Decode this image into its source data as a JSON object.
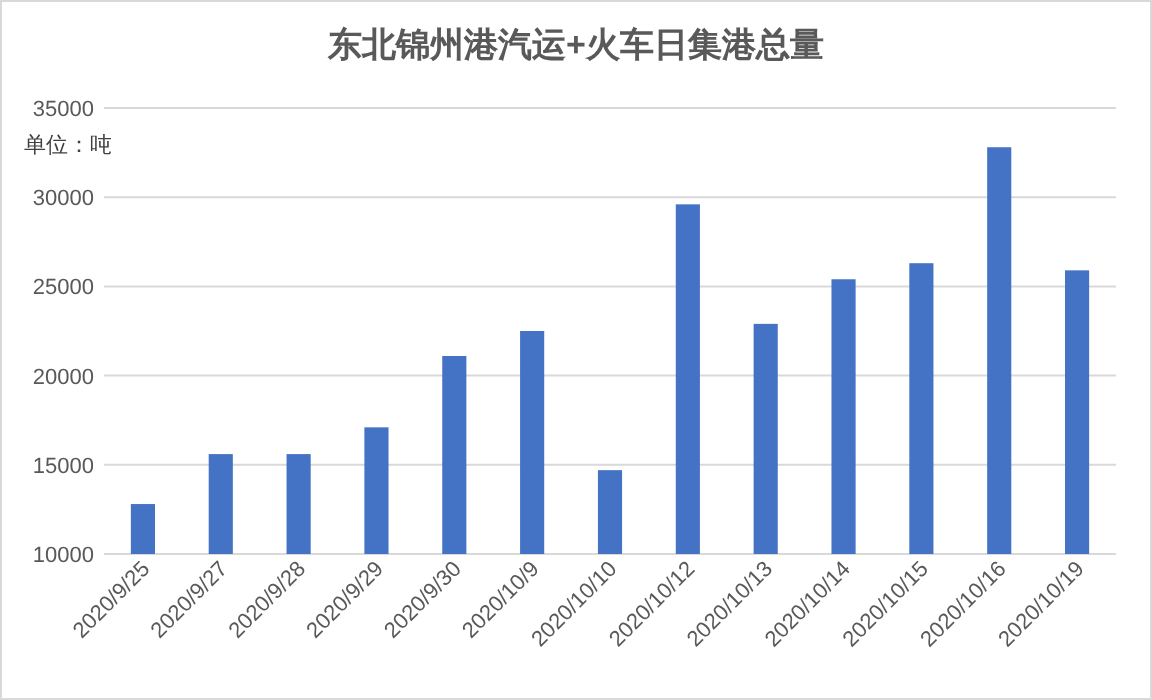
{
  "chart_data": {
    "type": "bar",
    "title": "东北锦州港汽运+火车日集港总量",
    "categories": [
      "2020/9/25",
      "2020/9/27",
      "2020/9/28",
      "2020/9/29",
      "2020/9/30",
      "2020/10/9",
      "2020/10/10",
      "2020/10/12",
      "2020/10/13",
      "2020/10/14",
      "2020/10/15",
      "2020/10/16",
      "2020/10/19"
    ],
    "values": [
      12800,
      15600,
      15600,
      17100,
      21100,
      22500,
      14700,
      29600,
      22900,
      25400,
      26300,
      32800,
      25900
    ],
    "color": "#4472c4",
    "ylim": [
      10000,
      35000
    ],
    "yticks": [
      10000,
      15000,
      20000,
      25000,
      30000,
      35000
    ],
    "grid": "y",
    "annotations": [
      "单位：吨"
    ]
  }
}
